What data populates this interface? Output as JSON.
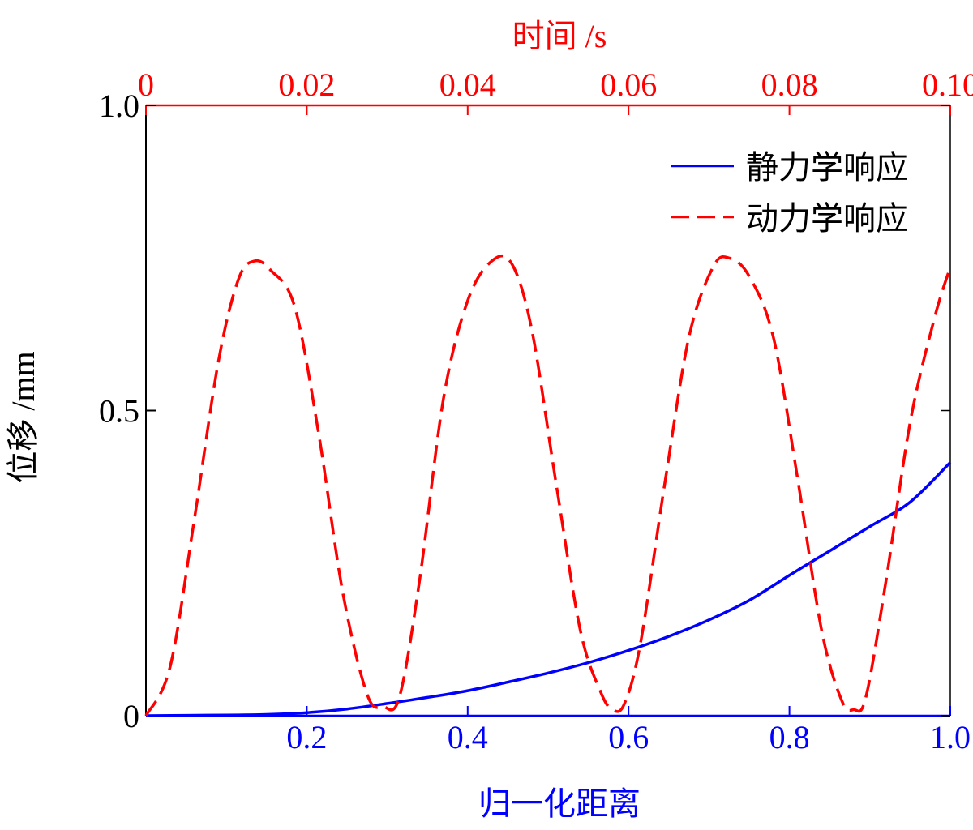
{
  "chart_data": {
    "type": "line",
    "xlabel_bottom": "归一化距离",
    "xlabel_top": "时间 /s",
    "ylabel": "位移 /mm",
    "xlim_bottom": [
      0,
      1.0
    ],
    "xlim_top": [
      0,
      0.1
    ],
    "ylim": [
      0,
      1.0
    ],
    "x_ticks_bottom": [
      "0.2",
      "0.4",
      "0.6",
      "0.8",
      "1.0"
    ],
    "x_ticks_top": [
      "0",
      "0.02",
      "0.04",
      "0.06",
      "0.08",
      "0.10"
    ],
    "y_ticks": [
      "0",
      "0.5",
      "1.0"
    ],
    "legend_position": "top-right",
    "colors": {
      "static": "#0000ff",
      "dynamic": "#ff0000"
    },
    "series": [
      {
        "name": "静力学响应",
        "axis": "bottom",
        "style": "solid",
        "x": [
          0,
          0.05,
          0.1,
          0.15,
          0.2,
          0.25,
          0.3,
          0.35,
          0.4,
          0.45,
          0.5,
          0.55,
          0.6,
          0.65,
          0.7,
          0.75,
          0.8,
          0.85,
          0.9,
          0.95,
          1.0
        ],
        "y": [
          0,
          0.0005,
          0.001,
          0.002,
          0.005,
          0.011,
          0.02,
          0.03,
          0.041,
          0.055,
          0.07,
          0.087,
          0.107,
          0.13,
          0.157,
          0.189,
          0.23,
          0.27,
          0.31,
          0.35,
          0.415
        ]
      },
      {
        "name": "动力学响应",
        "axis": "top",
        "style": "dashed",
        "x": [
          0,
          0.003,
          0.006,
          0.009,
          0.0115,
          0.0135,
          0.0155,
          0.0185,
          0.0215,
          0.0245,
          0.0275,
          0.0295,
          0.0315,
          0.034,
          0.037,
          0.04,
          0.043,
          0.0455,
          0.048,
          0.051,
          0.054,
          0.0565,
          0.058,
          0.0595,
          0.0615,
          0.0645,
          0.0675,
          0.0705,
          0.0725,
          0.075,
          0.078,
          0.081,
          0.084,
          0.0865,
          0.088,
          0.0895,
          0.092,
          0.095,
          0.098,
          0.1
        ],
        "y": [
          0,
          0.08,
          0.32,
          0.58,
          0.715,
          0.745,
          0.73,
          0.67,
          0.46,
          0.2,
          0.035,
          0.015,
          0.03,
          0.22,
          0.52,
          0.68,
          0.745,
          0.74,
          0.63,
          0.38,
          0.14,
          0.04,
          0.01,
          0.02,
          0.12,
          0.38,
          0.62,
          0.735,
          0.75,
          0.72,
          0.62,
          0.39,
          0.14,
          0.025,
          0.01,
          0.03,
          0.22,
          0.48,
          0.65,
          0.735
        ]
      }
    ]
  }
}
